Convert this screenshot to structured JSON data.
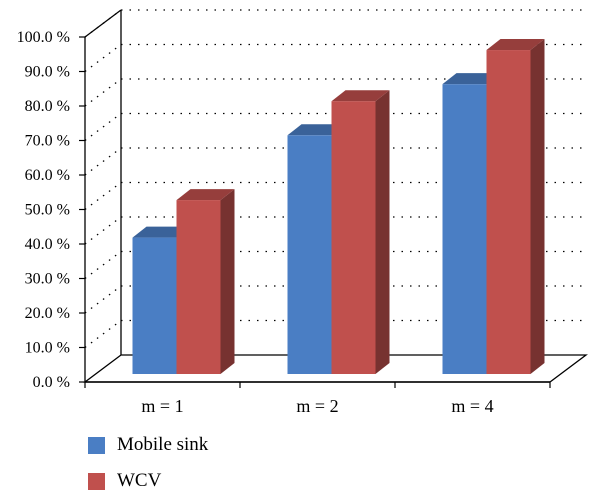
{
  "chart_data": {
    "type": "bar",
    "categories": [
      "m = 1",
      "m = 2",
      "m = 4"
    ],
    "series": [
      {
        "name": "Mobile sink",
        "values": [
          40,
          70,
          85
        ],
        "color": "#4a7ec4"
      },
      {
        "name": "WCV",
        "values": [
          51,
          80,
          95
        ],
        "color": "#c0504d"
      }
    ],
    "yticks": [
      "0.0 %",
      "10.0 %",
      "20.0 %",
      "30.0 %",
      "40.0 %",
      "50.0 %",
      "60.0 %",
      "70.0 %",
      "80.0 %",
      "90.0 %",
      "100.0 %"
    ],
    "ylim": [
      0,
      100
    ],
    "title": "",
    "xlabel": "",
    "ylabel": "",
    "grid": "dotted horizontal",
    "legend_position": "bottom-left"
  }
}
